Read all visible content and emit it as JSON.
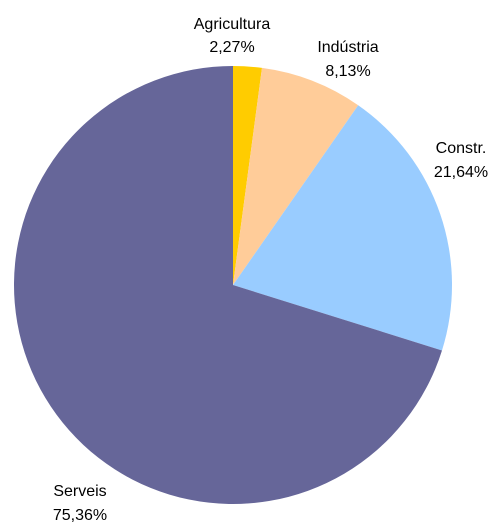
{
  "chart_data": {
    "type": "pie",
    "start_angle": "12 o'clock",
    "direction": "clockwise",
    "slices": [
      {
        "label": "Agricultura",
        "value_label": "2,27%",
        "value": 2.27,
        "color": "#ffcc00"
      },
      {
        "label": "Indústria",
        "value_label": "8,13%",
        "value": 8.13,
        "color": "#ffcc99"
      },
      {
        "label": "Constr.",
        "value_label": "21,64%",
        "value": 21.64,
        "color": "#99ccff"
      },
      {
        "label": "Serveis",
        "value_label": "75,36%",
        "value": 75.36,
        "color": "#666699"
      }
    ]
  }
}
